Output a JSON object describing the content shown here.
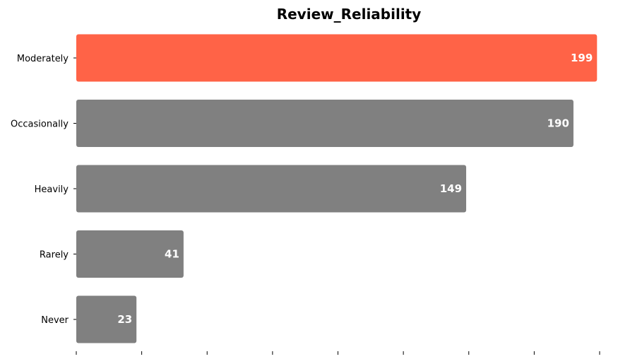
{
  "chart_data": {
    "type": "bar",
    "orientation": "horizontal",
    "title": "Review_Reliability",
    "xlabel": "",
    "ylabel": "",
    "categories": [
      "Moderately",
      "Occasionally",
      "Heavily",
      "Rarely",
      "Never"
    ],
    "values": [
      199,
      190,
      149,
      41,
      23
    ],
    "xlim": [
      0,
      200
    ],
    "grid": false,
    "legend": "none",
    "colors": {
      "highlight": "#ff6347",
      "default": "#808080",
      "label": "#ffffff"
    }
  }
}
